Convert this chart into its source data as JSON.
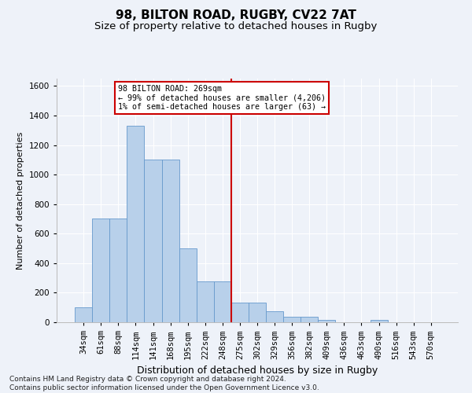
{
  "title1": "98, BILTON ROAD, RUGBY, CV22 7AT",
  "title2": "Size of property relative to detached houses in Rugby",
  "xlabel": "Distribution of detached houses by size in Rugby",
  "ylabel": "Number of detached properties",
  "footnote": "Contains HM Land Registry data © Crown copyright and database right 2024.\nContains public sector information licensed under the Open Government Licence v3.0.",
  "bar_labels": [
    "34sqm",
    "61sqm",
    "88sqm",
    "114sqm",
    "141sqm",
    "168sqm",
    "195sqm",
    "222sqm",
    "248sqm",
    "275sqm",
    "302sqm",
    "329sqm",
    "356sqm",
    "382sqm",
    "409sqm",
    "436sqm",
    "463sqm",
    "490sqm",
    "516sqm",
    "543sqm",
    "570sqm"
  ],
  "bar_values": [
    100,
    700,
    700,
    1330,
    1100,
    1100,
    500,
    275,
    275,
    135,
    135,
    75,
    35,
    35,
    15,
    0,
    0,
    15,
    0,
    0,
    0
  ],
  "bar_color": "#b8d0ea",
  "bar_edge_color": "#6699cc",
  "vline_color": "#cc0000",
  "annotation_text": "98 BILTON ROAD: 269sqm\n← 99% of detached houses are smaller (4,206)\n1% of semi-detached houses are larger (63) →",
  "annotation_box_color": "#ffffff",
  "annotation_box_edge": "#cc0000",
  "ylim": [
    0,
    1650
  ],
  "yticks": [
    0,
    200,
    400,
    600,
    800,
    1000,
    1200,
    1400,
    1600
  ],
  "bg_color": "#eef2f9",
  "grid_color": "#ffffff",
  "title1_fontsize": 11,
  "title2_fontsize": 9.5,
  "xlabel_fontsize": 9,
  "ylabel_fontsize": 8,
  "tick_fontsize": 7.5,
  "footnote_fontsize": 6.5
}
